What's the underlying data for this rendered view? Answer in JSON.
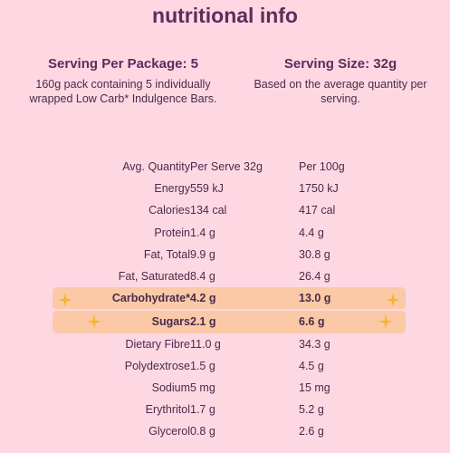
{
  "title": "nutritional info",
  "serving_per_package": {
    "heading": "Serving Per Package: 5",
    "description": "160g pack containing 5 individually wrapped Low Carb* Indulgence Bars."
  },
  "serving_size": {
    "heading": "Serving Size: 32g",
    "description": "Based on the average quantity per serving."
  },
  "table": {
    "headers": {
      "label": "Avg. Quantity",
      "per_serve": "Per Serve 32g",
      "per_100g": "Per 100g"
    },
    "rows": [
      {
        "label": "Energy",
        "per_serve": "559 kJ",
        "per_100g": "1750 kJ"
      },
      {
        "label": "Calories",
        "per_serve": "134 cal",
        "per_100g": "417 cal"
      },
      {
        "label": "Protein",
        "per_serve": "1.4 g",
        "per_100g": "4.4 g"
      },
      {
        "label": "Fat, Total",
        "per_serve": "9.9 g",
        "per_100g": "30.8 g"
      },
      {
        "label": "Fat, Saturated",
        "per_serve": "8.4 g",
        "per_100g": "26.4 g"
      },
      {
        "label": "Carbohydrate*",
        "per_serve": "4.2 g",
        "per_100g": "13.0 g"
      },
      {
        "label": "Sugars",
        "per_serve": "2.1 g",
        "per_100g": "6.6 g"
      },
      {
        "label": "Dietary Fibre",
        "per_serve": "11.0 g",
        "per_100g": "34.3 g"
      },
      {
        "label": "Polydextrose",
        "per_serve": "1.5 g",
        "per_100g": "4.5 g"
      },
      {
        "label": "Sodium",
        "per_serve": "5 mg",
        "per_100g": "15 mg"
      },
      {
        "label": "Erythritol",
        "per_serve": "1.7 g",
        "per_100g": "5.2 g"
      },
      {
        "label": "Glycerol",
        "per_serve": "0.8 g",
        "per_100g": "2.6 g"
      }
    ]
  },
  "colors": {
    "background": "#fdd8e3",
    "highlight": "#fcc9a7",
    "sparkle": "#f5b431",
    "title": "#5b2d5b"
  }
}
